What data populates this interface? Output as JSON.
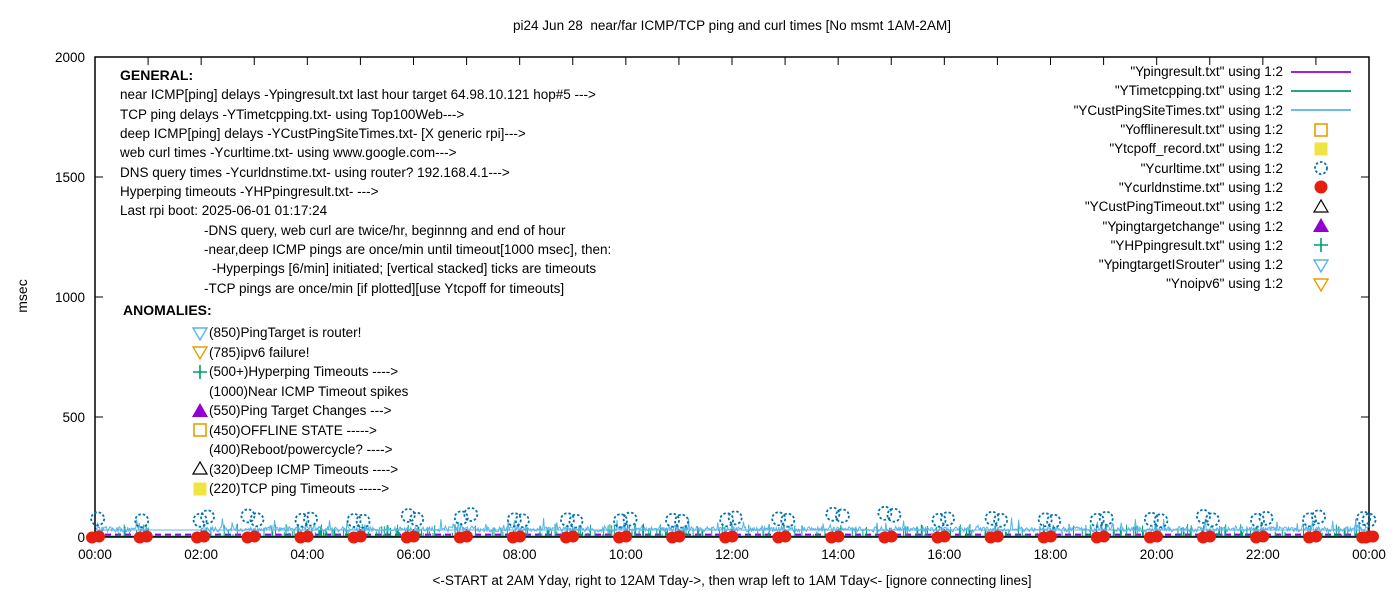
{
  "title": "pi24 Jun 28  near/far ICMP/TCP ping and curl times [No msmt 1AM-2AM]",
  "general": {
    "heading": "GENERAL:",
    "lines": [
      {
        "text": "near ICMP[ping] delays -Ypingresult.txt last hour target 64.98.10.121 hop#5 --->",
        "indent": 0
      },
      {
        "text": "TCP ping delays -YTimetcpping.txt- using Top100Web--->",
        "indent": 0
      },
      {
        "text": "deep ICMP[ping] delays -YCustPingSiteTimes.txt- [X generic rpi]--->",
        "indent": 0
      },
      {
        "text": "web curl times -Ycurltime.txt- using www.google.com--->",
        "indent": 0
      },
      {
        "text": "DNS query times -Ycurldnstime.txt- using router? 192.168.4.1--->",
        "indent": 0
      },
      {
        "text": "Hyperping timeouts -YHPpingresult.txt- --->",
        "indent": 0
      },
      {
        "text": "Last rpi boot: 2025-06-01 01:17:24",
        "indent": 0
      },
      {
        "text": "-DNS query, web curl are twice/hr, beginnng and end of hour",
        "indent": 1
      },
      {
        "text": "-near,deep ICMP pings are once/min until timeout[1000 msec], then:",
        "indent": 1
      },
      {
        "text": "-Hyperpings [6/min] initiated; [vertical stacked] ticks are timeouts",
        "indent": 2
      },
      {
        "text": "-TCP pings are once/min [if plotted][use Ytcpoff for timeouts]",
        "indent": 1
      }
    ]
  },
  "anomalies": {
    "heading": "ANOMALIES:",
    "items": [
      {
        "marker": "open-tri-down",
        "color": "#56B4E9",
        "label": "(850)PingTarget is router!"
      },
      {
        "marker": "open-tri-down",
        "color": "#E69F00",
        "label": "(785)ipv6 failure!"
      },
      {
        "marker": "plus",
        "color": "#009E73",
        "label": "(500+)Hyperping Timeouts ---->"
      },
      {
        "marker": "none",
        "color": "",
        "label": "(1000)Near ICMP Timeout spikes"
      },
      {
        "marker": "filled-triangle",
        "color": "#9400D3",
        "label": "(550)Ping Target Changes --->"
      },
      {
        "marker": "open-square",
        "color": "#E69F00",
        "label": "(450)OFFLINE STATE ----->"
      },
      {
        "marker": "none",
        "color": "",
        "label": "(400)Reboot/powercycle? ---->"
      },
      {
        "marker": "open-triangle",
        "color": "#000000",
        "label": "(320)Deep ICMP Timeouts ---->"
      },
      {
        "marker": "filled-square",
        "color": "#F0E442",
        "label": "(220)TCP ping Timeouts ----->"
      }
    ]
  },
  "chart_data": {
    "type": "line",
    "title": "pi24 Jun 28  near/far ICMP/TCP ping and curl times [No msmt 1AM-2AM]",
    "xlabel": "<-START at 2AM Yday, right to 12AM Tday->, then wrap left to 1AM Tday<- [ignore connecting lines]",
    "ylabel": "msec",
    "x_tick_labels": [
      "00:00",
      "02:00",
      "04:00",
      "06:00",
      "08:00",
      "10:00",
      "12:00",
      "14:00",
      "16:00",
      "18:00",
      "20:00",
      "22:00",
      "00:00"
    ],
    "x_tick_hours": [
      0,
      2,
      4,
      6,
      8,
      10,
      12,
      14,
      16,
      18,
      20,
      22,
      24
    ],
    "xlim_hours": [
      0,
      24
    ],
    "y_ticks": [
      0,
      500,
      1000,
      1500,
      2000
    ],
    "ylim": [
      0,
      2000
    ],
    "grid": false,
    "legend_position": "top-right",
    "no_measurement_gap_hours": [
      1,
      2
    ],
    "series": [
      {
        "label": "\"Ypingresult.txt\" using 1:2",
        "color": "#9400D3",
        "marker": "line",
        "render": "dashed-line",
        "value_msec": 10
      },
      {
        "label": "\"YTimetcpping.txt\" using 1:2",
        "color": "#009E73",
        "marker": "line",
        "render": "ticks",
        "baseline_msec": 3,
        "tick_min_msec": 8,
        "tick_max_msec": 56,
        "tick_rate": 0.25
      },
      {
        "label": "\"YCustPingSiteTimes.txt\" using 1:2",
        "color": "#56B4E9",
        "marker": "line",
        "render": "noisy-line",
        "baseline_msec": 21,
        "noise_msec": 22,
        "spike_rate": 0.07,
        "spike_msec": 42,
        "gap_value_msec": 29
      },
      {
        "label": "\"Yofflineresult.txt\" using 1:2",
        "color": "#E69F00",
        "marker": "open-square",
        "render": "points",
        "points": []
      },
      {
        "label": "\"Ytcpoff_record.txt\" using 1:2",
        "color": "#F0E442",
        "marker": "filled-square",
        "render": "points",
        "points": []
      },
      {
        "label": "\"Ycurltime.txt\" using 1:2",
        "color": "#0072B2",
        "marker": "open-circle",
        "render": "points",
        "points": [
          [
            0.05,
            76
          ],
          [
            0.88,
            68
          ],
          [
            1.98,
            70
          ],
          [
            2.12,
            84
          ],
          [
            2.88,
            88
          ],
          [
            3.05,
            72
          ],
          [
            3.9,
            70
          ],
          [
            4.06,
            75
          ],
          [
            4.88,
            69
          ],
          [
            5.05,
            66
          ],
          [
            5.9,
            90
          ],
          [
            6.06,
            74
          ],
          [
            6.9,
            80
          ],
          [
            7.08,
            94
          ],
          [
            7.9,
            72
          ],
          [
            8.05,
            68
          ],
          [
            8.9,
            72
          ],
          [
            9.06,
            66
          ],
          [
            9.9,
            68
          ],
          [
            10.08,
            75
          ],
          [
            10.88,
            70
          ],
          [
            11.05,
            66
          ],
          [
            11.9,
            72
          ],
          [
            12.06,
            80
          ],
          [
            12.88,
            76
          ],
          [
            13.05,
            70
          ],
          [
            13.9,
            95
          ],
          [
            14.08,
            88
          ],
          [
            14.88,
            99
          ],
          [
            15.05,
            91
          ],
          [
            15.9,
            70
          ],
          [
            16.06,
            76
          ],
          [
            16.9,
            78
          ],
          [
            17.06,
            70
          ],
          [
            17.9,
            72
          ],
          [
            18.06,
            66
          ],
          [
            18.88,
            70
          ],
          [
            19.05,
            78
          ],
          [
            19.9,
            74
          ],
          [
            20.08,
            68
          ],
          [
            20.88,
            86
          ],
          [
            21.05,
            72
          ],
          [
            21.9,
            70
          ],
          [
            22.06,
            78
          ],
          [
            22.88,
            72
          ],
          [
            23.05,
            84
          ],
          [
            23.9,
            78
          ],
          [
            24,
            70
          ]
        ]
      },
      {
        "label": "\"Ycurldnstime.txt\" using 1:2",
        "color": "#E51E10",
        "marker": "filled-circle",
        "render": "blob-points",
        "points": [
          [
            0,
            2
          ],
          [
            0.9,
            2
          ],
          [
            1.98,
            2
          ],
          [
            2.93,
            2
          ],
          [
            3.93,
            2
          ],
          [
            4.93,
            2
          ],
          [
            5.93,
            2
          ],
          [
            6.93,
            2
          ],
          [
            7.93,
            2
          ],
          [
            8.93,
            2
          ],
          [
            9.93,
            2
          ],
          [
            10.93,
            2
          ],
          [
            11.93,
            2
          ],
          [
            12.93,
            2
          ],
          [
            13.93,
            2
          ],
          [
            14.93,
            2
          ],
          [
            15.93,
            2
          ],
          [
            16.93,
            2
          ],
          [
            17.93,
            2
          ],
          [
            18.93,
            2
          ],
          [
            19.93,
            2
          ],
          [
            20.93,
            2
          ],
          [
            21.93,
            2
          ],
          [
            22.93,
            2
          ],
          [
            23.93,
            2
          ],
          [
            24,
            2
          ]
        ]
      },
      {
        "label": "\"YCustPingTimeout.txt\" using 1:2",
        "color": "#000000",
        "marker": "open-triangle",
        "render": "points",
        "points": []
      },
      {
        "label": "\"Ypingtargetchange\" using 1:2",
        "color": "#9400D3",
        "marker": "filled-triangle",
        "render": "points",
        "points": []
      },
      {
        "label": "\"YHPpingresult.txt\" using 1:2",
        "color": "#009E73",
        "marker": "plus",
        "render": "points",
        "points": []
      },
      {
        "label": "\"YpingtargetISrouter\" using 1:2",
        "color": "#56B4E9",
        "marker": "open-tri-down",
        "render": "points",
        "points": []
      },
      {
        "label": "\"Ynoipv6\" using 1:2",
        "color": "#E69F00",
        "marker": "open-tri-down",
        "render": "points",
        "points": []
      }
    ]
  }
}
